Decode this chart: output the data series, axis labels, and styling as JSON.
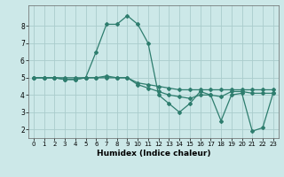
{
  "title": "",
  "xlabel": "Humidex (Indice chaleur)",
  "ylabel": "",
  "background_color": "#cce8e8",
  "grid_color": "#aacccc",
  "line_color": "#2e7d6e",
  "xlim": [
    -0.5,
    23.5
  ],
  "ylim": [
    1.5,
    9.2
  ],
  "xticks": [
    0,
    1,
    2,
    3,
    4,
    5,
    6,
    7,
    8,
    9,
    10,
    11,
    12,
    13,
    14,
    15,
    16,
    17,
    18,
    19,
    20,
    21,
    22,
    23
  ],
  "yticks": [
    2,
    3,
    4,
    5,
    6,
    7,
    8
  ],
  "series": [
    {
      "x": [
        0,
        1,
        2,
        3,
        4,
        5,
        6,
        7,
        8,
        9,
        10,
        11,
        12,
        13,
        14,
        15,
        16,
        17,
        18,
        19,
        20,
        21,
        22,
        23
      ],
      "y": [
        5.0,
        5.0,
        5.0,
        5.0,
        5.0,
        5.0,
        5.0,
        5.0,
        5.0,
        5.0,
        4.7,
        4.6,
        4.5,
        4.4,
        4.3,
        4.3,
        4.3,
        4.3,
        4.3,
        4.3,
        4.3,
        4.3,
        4.3,
        4.3
      ]
    },
    {
      "x": [
        0,
        1,
        2,
        3,
        4,
        5,
        6,
        7,
        8,
        9,
        10,
        11,
        12,
        13,
        14,
        15,
        16,
        17,
        18,
        19,
        20,
        21,
        22,
        23
      ],
      "y": [
        5.0,
        5.0,
        5.0,
        4.9,
        4.9,
        5.0,
        5.0,
        5.1,
        5.0,
        5.0,
        4.6,
        4.4,
        4.2,
        4.0,
        3.9,
        3.8,
        4.0,
        4.0,
        3.9,
        4.2,
        4.2,
        4.1,
        4.1,
        4.1
      ]
    },
    {
      "x": [
        0,
        1,
        2,
        3,
        4,
        5,
        6,
        7,
        8,
        9,
        10,
        11,
        12,
        13,
        14,
        15,
        16,
        17,
        18,
        19,
        20,
        21,
        22,
        23
      ],
      "y": [
        5.0,
        5.0,
        5.0,
        4.9,
        4.9,
        5.0,
        6.5,
        8.1,
        8.1,
        8.6,
        8.1,
        7.0,
        4.0,
        3.5,
        3.0,
        3.5,
        4.2,
        4.0,
        2.5,
        4.0,
        4.1,
        1.9,
        2.1,
        4.1
      ]
    }
  ]
}
